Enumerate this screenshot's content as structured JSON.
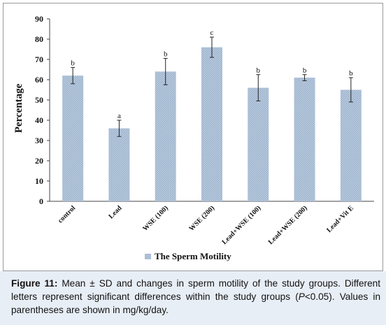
{
  "chart_data": {
    "type": "bar",
    "categories": [
      "control",
      "Lead",
      "WSE (100)",
      "WSE (200)",
      "Lead+WSE (100)",
      "Lead+WSE (200)",
      "Lead+Vit E"
    ],
    "series": [
      {
        "name": "The Sperm Motility",
        "values": [
          62,
          36,
          64,
          76,
          56,
          61,
          55
        ],
        "errors": [
          4,
          4,
          6.5,
          5,
          6.5,
          1.5,
          6
        ],
        "letters": [
          "b",
          "a",
          "b",
          "c",
          "b",
          "b",
          "b"
        ]
      }
    ],
    "ylabel": "Percentage",
    "xlabel": "",
    "ylim": [
      0,
      90
    ],
    "yticks": [
      0,
      10,
      20,
      30,
      40,
      50,
      60,
      70,
      80,
      90
    ],
    "ytick_labels": [
      "0",
      "10",
      "20",
      "30",
      "40",
      "50",
      "60",
      "70",
      "80",
      "90"
    ],
    "legend_position": "bottom",
    "grid": false,
    "bar_color": "#a9bfd6"
  },
  "caption": {
    "label": "Figure 11:",
    "text_1": " Mean ± SD and changes in sperm motility of the study groups. Different letters represent significant differences within the study groups (",
    "p_symbol": "P",
    "text_2": "<0.05). Values in parentheses are shown in mg/kg/day."
  }
}
